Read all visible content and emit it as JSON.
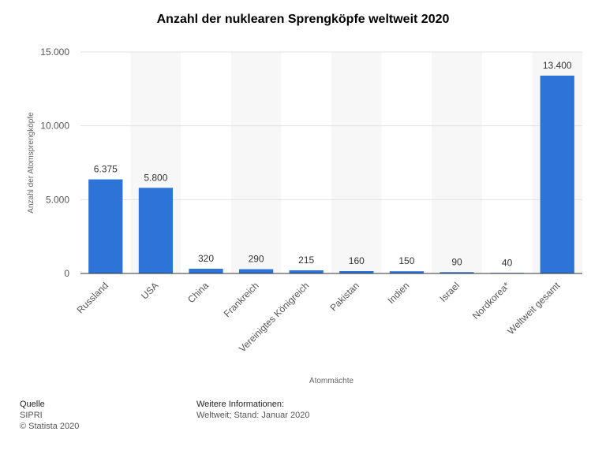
{
  "chart_data": {
    "type": "bar",
    "title": "Anzahl der nuklearen Sprengköpfe weltweit 2020",
    "xlabel": "Atommächte",
    "ylabel": "Anzahl der Atomsprengköpfe",
    "categories": [
      "Russland",
      "USA",
      "China",
      "Frankreich",
      "Vereinigtes Königreich",
      "Pakistan",
      "Indien",
      "Israel",
      "Nordkorea*",
      "Weltweit gesamt"
    ],
    "values": [
      6375,
      5800,
      320,
      290,
      215,
      160,
      150,
      90,
      40,
      13400
    ],
    "value_labels": [
      "6.375",
      "5.800",
      "320",
      "290",
      "215",
      "160",
      "150",
      "90",
      "40",
      "13.400"
    ],
    "ylim": [
      0,
      15000
    ],
    "yticks": [
      0,
      5000,
      10000,
      15000
    ],
    "ytick_labels": [
      "0",
      "5.000",
      "10.000",
      "15.000"
    ],
    "grid": true,
    "bar_color": "#2e74d8"
  },
  "footer": {
    "source_heading": "Quelle",
    "source": "SIPRI",
    "copyright": "© Statista 2020",
    "info_heading": "Weitere Informationen:",
    "info": "Weltweit; Stand: Januar 2020"
  }
}
